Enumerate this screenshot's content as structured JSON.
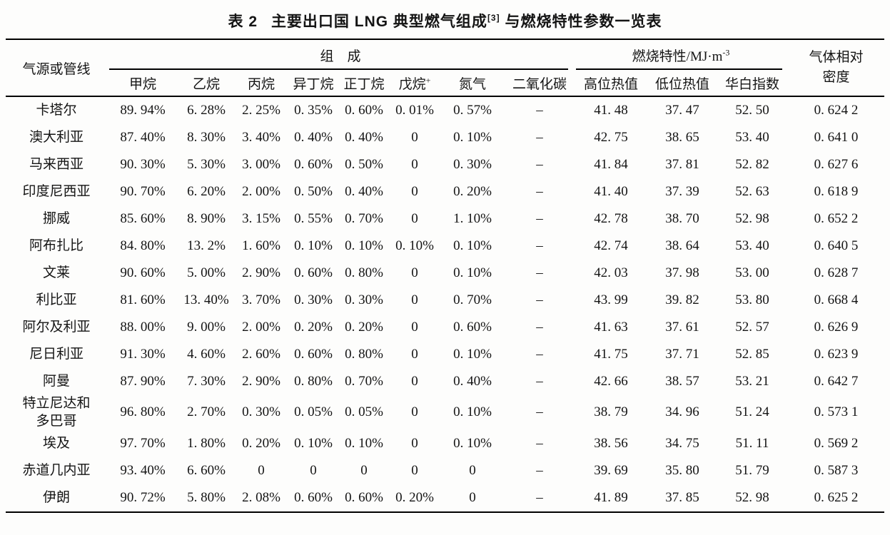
{
  "title": {
    "label": "表 2",
    "text": "主要出口国 LNG 典型燃气组成",
    "citation": "[3]",
    "suffix": " 与燃烧特性参数一览表"
  },
  "table": {
    "source_header": "气源或管线",
    "composition_group": "组　成",
    "combustion_group": "燃烧特性/MJ·m",
    "combustion_sup": "-3",
    "density_header": "气体相对\n密度",
    "sub_headers": {
      "methane": "甲烷",
      "ethane": "乙烷",
      "propane": "丙烷",
      "isobutane": "异丁烷",
      "nbutane": "正丁烷",
      "pentane": "戊烷",
      "pentane_sup": "+",
      "nitrogen": "氮气",
      "co2": "二氧化碳",
      "hhv": "高位热值",
      "lhv": "低位热值",
      "wobbe": "华白指数"
    },
    "rows": [
      {
        "name": "卡塔尔",
        "cells": [
          "89. 94%",
          "6. 28%",
          "2. 25%",
          "0. 35%",
          "0. 60%",
          "0. 01%",
          "0. 57%",
          "–",
          "41. 48",
          "37. 47",
          "52. 50",
          "0. 624 2"
        ]
      },
      {
        "name": "澳大利亚",
        "cells": [
          "87. 40%",
          "8. 30%",
          "3. 40%",
          "0. 40%",
          "0. 40%",
          "0",
          "0. 10%",
          "–",
          "42. 75",
          "38. 65",
          "53. 40",
          "0. 641 0"
        ]
      },
      {
        "name": "马来西亚",
        "cells": [
          "90. 30%",
          "5. 30%",
          "3. 00%",
          "0. 60%",
          "0. 50%",
          "0",
          "0. 30%",
          "–",
          "41. 84",
          "37. 81",
          "52. 82",
          "0. 627 6"
        ]
      },
      {
        "name": "印度尼西亚",
        "cells": [
          "90. 70%",
          "6. 20%",
          "2. 00%",
          "0. 50%",
          "0. 40%",
          "0",
          "0. 20%",
          "–",
          "41. 40",
          "37. 39",
          "52. 63",
          "0. 618 9"
        ]
      },
      {
        "name": "挪威",
        "cells": [
          "85. 60%",
          "8. 90%",
          "3. 15%",
          "0. 55%",
          "0. 70%",
          "0",
          "1. 10%",
          "–",
          "42. 78",
          "38. 70",
          "52. 98",
          "0. 652 2"
        ]
      },
      {
        "name": "阿布扎比",
        "cells": [
          "84. 80%",
          "13. 2%",
          "1. 60%",
          "0. 10%",
          "0. 10%",
          "0. 10%",
          "0. 10%",
          "–",
          "42. 74",
          "38. 64",
          "53. 40",
          "0. 640 5"
        ]
      },
      {
        "name": "文莱",
        "cells": [
          "90. 60%",
          "5. 00%",
          "2. 90%",
          "0. 60%",
          "0. 80%",
          "0",
          "0. 10%",
          "–",
          "42. 03",
          "37. 98",
          "53. 00",
          "0. 628 7"
        ]
      },
      {
        "name": "利比亚",
        "cells": [
          "81. 60%",
          "13. 40%",
          "3. 70%",
          "0. 30%",
          "0. 30%",
          "0",
          "0. 70%",
          "–",
          "43. 99",
          "39. 82",
          "53. 80",
          "0. 668 4"
        ]
      },
      {
        "name": "阿尔及利亚",
        "cells": [
          "88. 00%",
          "9. 00%",
          "2. 00%",
          "0. 20%",
          "0. 20%",
          "0",
          "0. 60%",
          "–",
          "41. 63",
          "37. 61",
          "52. 57",
          "0. 626 9"
        ]
      },
      {
        "name": "尼日利亚",
        "cells": [
          "91. 30%",
          "4. 60%",
          "2. 60%",
          "0. 60%",
          "0. 80%",
          "0",
          "0. 10%",
          "–",
          "41. 75",
          "37. 71",
          "52. 85",
          "0. 623 9"
        ]
      },
      {
        "name": "阿曼",
        "cells": [
          "87. 90%",
          "7. 30%",
          "2. 90%",
          "0. 80%",
          "0. 70%",
          "0",
          "0. 40%",
          "–",
          "42. 66",
          "38. 57",
          "53. 21",
          "0. 642 7"
        ]
      },
      {
        "name": "特立尼达和\n多巴哥",
        "cells": [
          "96. 80%",
          "2. 70%",
          "0. 30%",
          "0. 05%",
          "0. 05%",
          "0",
          "0. 10%",
          "–",
          "38. 79",
          "34. 96",
          "51. 24",
          "0. 573 1"
        ]
      },
      {
        "name": "埃及",
        "cells": [
          "97. 70%",
          "1. 80%",
          "0. 20%",
          "0. 10%",
          "0. 10%",
          "0",
          "0. 10%",
          "–",
          "38. 56",
          "34. 75",
          "51. 11",
          "0. 569 2"
        ]
      },
      {
        "name": "赤道几内亚",
        "cells": [
          "93. 40%",
          "6. 60%",
          "0",
          "0",
          "0",
          "0",
          "0",
          "–",
          "39. 69",
          "35. 80",
          "51. 79",
          "0. 587 3"
        ]
      },
      {
        "name": "伊朗",
        "cells": [
          "90. 72%",
          "5. 80%",
          "2. 08%",
          "0. 60%",
          "0. 60%",
          "0. 20%",
          "0",
          "–",
          "41. 89",
          "37. 85",
          "52. 98",
          "0. 625 2"
        ]
      }
    ]
  }
}
